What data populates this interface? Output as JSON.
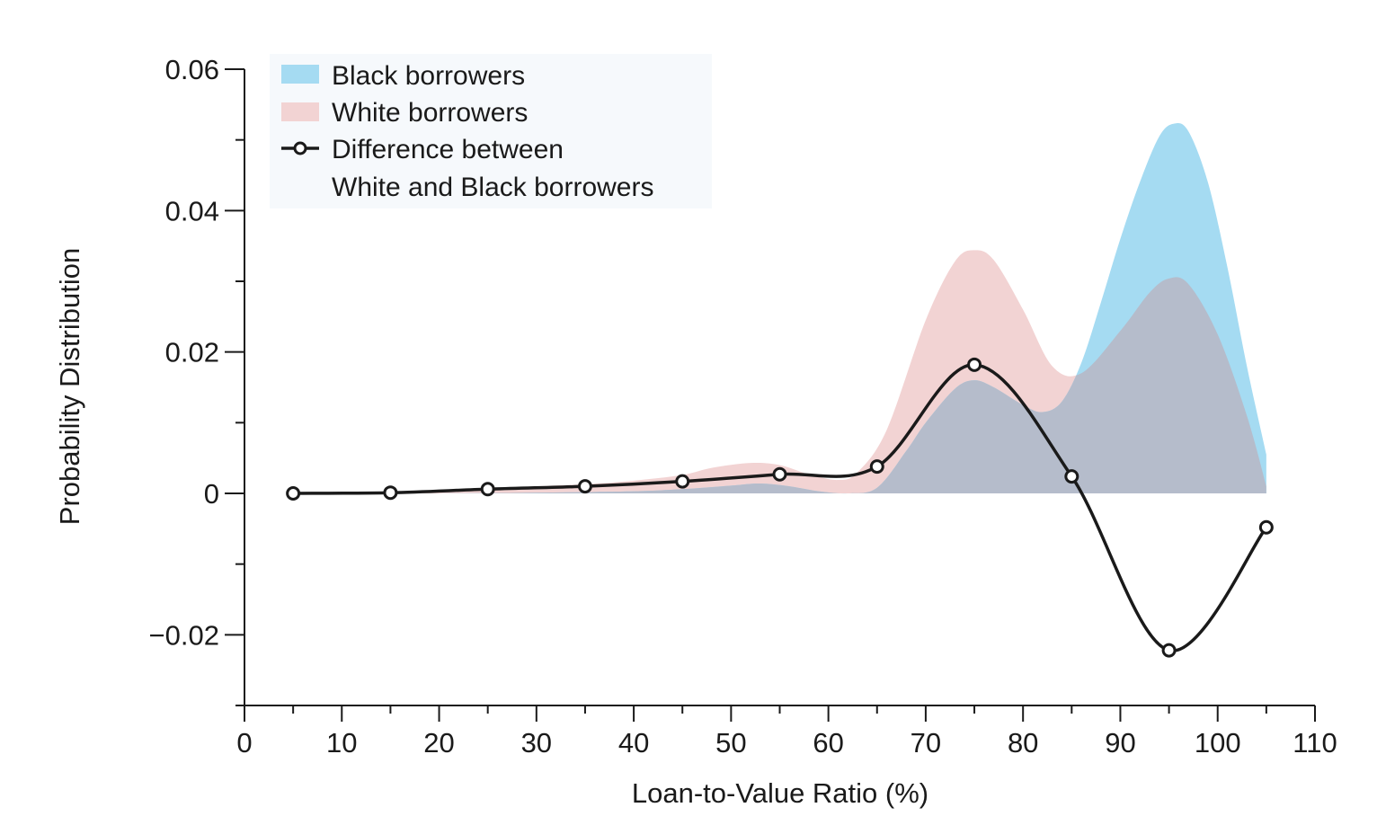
{
  "chart_data": {
    "type": "area",
    "xlabel": "Loan-to-Value Ratio (%)",
    "ylabel": "Probability Distribution",
    "xlim": [
      0,
      110
    ],
    "ylim": [
      -0.03,
      0.06
    ],
    "x_ticks": [
      {
        "value": 0,
        "label": "0"
      },
      {
        "value": 10,
        "label": "10"
      },
      {
        "value": 20,
        "label": "20"
      },
      {
        "value": 30,
        "label": "30"
      },
      {
        "value": 40,
        "label": "40"
      },
      {
        "value": 50,
        "label": "50"
      },
      {
        "value": 60,
        "label": "60"
      },
      {
        "value": 70,
        "label": "70"
      },
      {
        "value": 80,
        "label": "80"
      },
      {
        "value": 90,
        "label": "90"
      },
      {
        "value": 100,
        "label": "100"
      },
      {
        "value": 110,
        "label": "110"
      }
    ],
    "y_ticks": [
      {
        "value": 0.06,
        "label": "0.06"
      },
      {
        "value": 0.04,
        "label": "0.04"
      },
      {
        "value": 0.02,
        "label": "0.02"
      },
      {
        "value": 0,
        "label": "0"
      },
      {
        "value": -0.02,
        "label": "−0.02"
      }
    ],
    "y_minor_ticks": [
      0.05,
      0.03,
      0.01,
      -0.01,
      -0.03
    ],
    "x_minor_ticks": [
      5,
      15,
      25,
      35,
      45,
      55,
      65,
      75,
      85,
      95,
      105
    ],
    "legend": {
      "position": "top-left",
      "items": [
        {
          "label": "Black borrowers",
          "swatch": "area",
          "color": "#a5dbf2"
        },
        {
          "label": "White borrowers",
          "swatch": "area",
          "color": "#f2d3d3"
        },
        {
          "label": "Difference between",
          "label_line2": "White and Black borrowers",
          "swatch": "line-marker",
          "color": "#1a1a1a"
        }
      ]
    },
    "series": [
      {
        "name": "White borrowers",
        "kind": "area",
        "color": "#f2d3d3",
        "x": [
          5,
          10,
          15,
          20,
          25,
          30,
          35,
          40,
          45,
          48,
          52,
          55,
          58,
          61,
          63,
          66,
          70,
          73,
          75,
          77,
          80,
          83,
          86,
          90,
          93,
          95,
          97,
          100,
          103,
          105
        ],
        "y": [
          0,
          0.0001,
          0.0002,
          0.0004,
          0.0007,
          0.001,
          0.0013,
          0.0018,
          0.0026,
          0.0036,
          0.0043,
          0.004,
          0.0027,
          0.0019,
          0.003,
          0.009,
          0.0245,
          0.0328,
          0.0344,
          0.033,
          0.026,
          0.018,
          0.017,
          0.023,
          0.0284,
          0.0304,
          0.0296,
          0.0225,
          0.011,
          0.001
        ]
      },
      {
        "name": "Black borrowers",
        "kind": "area",
        "color": "#a5dbf2",
        "x": [
          5,
          10,
          20,
          30,
          40,
          45,
          50,
          53,
          56,
          59,
          62,
          65,
          68,
          70,
          73,
          75,
          77,
          80,
          82,
          84,
          86,
          88,
          90,
          92,
          94,
          95.5,
          97,
          99,
          101,
          103,
          105
        ],
        "y": [
          0,
          0,
          0,
          0.0001,
          0.0003,
          0.0006,
          0.0011,
          0.0014,
          0.001,
          0.0003,
          0,
          0.0008,
          0.006,
          0.01,
          0.0148,
          0.016,
          0.015,
          0.0125,
          0.0115,
          0.013,
          0.0185,
          0.027,
          0.036,
          0.044,
          0.0505,
          0.0523,
          0.0512,
          0.044,
          0.032,
          0.018,
          0.0055
        ]
      },
      {
        "name": "Difference between White and Black borrowers",
        "kind": "line",
        "color": "#1a1a1a",
        "x": [
          5,
          15,
          25,
          35,
          45,
          55,
          65,
          75,
          85,
          95,
          105
        ],
        "y": [
          0,
          0.0001,
          0.0006,
          0.001,
          0.0017,
          0.0027,
          0.0038,
          0.0182,
          0.0024,
          -0.0222,
          -0.0048
        ]
      }
    ],
    "overlap_color": "#b5bccb"
  }
}
